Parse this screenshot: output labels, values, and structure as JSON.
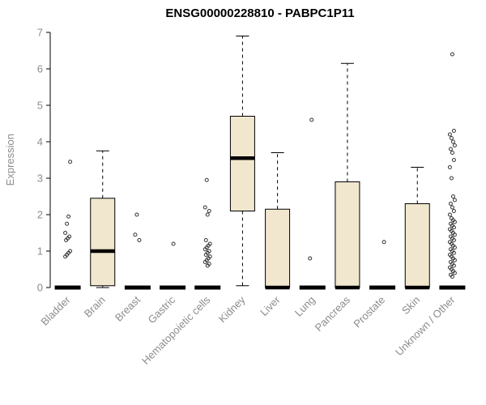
{
  "page": {
    "title": "ENSG00000228810 - PABPC1P11"
  },
  "chart_data": {
    "type": "boxplot",
    "title": "ENSG00000228810 - PABPC1P11",
    "xlabel": "",
    "ylabel": "Expression",
    "ylim": [
      0,
      7
    ],
    "yticks": [
      0,
      1,
      2,
      3,
      4,
      5,
      6,
      7
    ],
    "grid": false,
    "legend": null,
    "categories": [
      "Bladder",
      "Brain",
      "Breast",
      "Gastric",
      "Hematopoietic cells",
      "Kidney",
      "Liver",
      "Lung",
      "Pancreas",
      "Prostate",
      "Skin",
      "Unknown / Other"
    ],
    "boxes": [
      {
        "category": "Bladder",
        "low": 0,
        "q1": 0,
        "median": 0,
        "q3": 0,
        "high": 0,
        "outliers": [
          0.85,
          0.9,
          0.95,
          1.0,
          1.3,
          1.35,
          1.4,
          1.5,
          1.75,
          1.95,
          3.45
        ]
      },
      {
        "category": "Brain",
        "low": 0,
        "q1": 0.05,
        "median": 1.0,
        "q3": 2.45,
        "high": 3.75,
        "outliers": []
      },
      {
        "category": "Breast",
        "low": 0,
        "q1": 0,
        "median": 0,
        "q3": 0,
        "high": 0,
        "outliers": [
          1.3,
          1.45,
          2.0
        ]
      },
      {
        "category": "Gastric",
        "low": 0,
        "q1": 0,
        "median": 0,
        "q3": 0,
        "high": 0,
        "outliers": [
          1.2
        ]
      },
      {
        "category": "Hematopoietic cells",
        "low": 0,
        "q1": 0,
        "median": 0,
        "q3": 0,
        "high": 0,
        "outliers": [
          0.6,
          0.65,
          0.7,
          0.75,
          0.8,
          0.85,
          0.9,
          0.95,
          1.0,
          1.05,
          1.1,
          1.15,
          1.2,
          1.3,
          2.0,
          2.1,
          2.2,
          2.95
        ]
      },
      {
        "category": "Kidney",
        "low": 0.05,
        "q1": 2.1,
        "median": 3.55,
        "q3": 4.7,
        "high": 6.9,
        "outliers": []
      },
      {
        "category": "Liver",
        "low": 0,
        "q1": 0,
        "median": 0,
        "q3": 2.15,
        "high": 3.7,
        "outliers": []
      },
      {
        "category": "Lung",
        "low": 0,
        "q1": 0,
        "median": 0,
        "q3": 0,
        "high": 0,
        "outliers": [
          0.8,
          4.6
        ]
      },
      {
        "category": "Pancreas",
        "low": 0,
        "q1": 0,
        "median": 0,
        "q3": 2.9,
        "high": 6.15,
        "outliers": []
      },
      {
        "category": "Prostate",
        "low": 0,
        "q1": 0,
        "median": 0,
        "q3": 0,
        "high": 0,
        "outliers": [
          1.25
        ]
      },
      {
        "category": "Skin",
        "low": 0,
        "q1": 0,
        "median": 0,
        "q3": 2.3,
        "high": 3.3,
        "outliers": []
      },
      {
        "category": "Unknown / Other",
        "low": 0,
        "q1": 0,
        "median": 0,
        "q3": 0,
        "high": 0,
        "outliers": [
          6.4,
          4.3,
          4.2,
          4.1,
          4.0,
          3.9,
          3.8,
          3.7,
          3.5,
          3.3,
          3.0,
          2.5,
          2.4,
          2.3,
          2.2,
          2.1,
          2.0,
          1.9,
          1.85,
          1.8,
          1.75,
          1.7,
          1.65,
          1.6,
          1.55,
          1.5,
          1.45,
          1.4,
          1.35,
          1.3,
          1.25,
          1.2,
          1.15,
          1.1,
          1.05,
          1.0,
          0.95,
          0.9,
          0.85,
          0.8,
          0.75,
          0.7,
          0.65,
          0.6,
          0.55,
          0.5,
          0.45,
          0.4,
          0.35,
          0.3
        ]
      }
    ],
    "style": {
      "box_fill": "#f0e7ce",
      "box_stroke": "#000000",
      "median_color": "#000000",
      "whisker_color": "#000000",
      "outlier_color": "#333333",
      "axis_color": "#000000",
      "tick_label_color": "#8c8c8c",
      "title_color": "#000000"
    }
  }
}
